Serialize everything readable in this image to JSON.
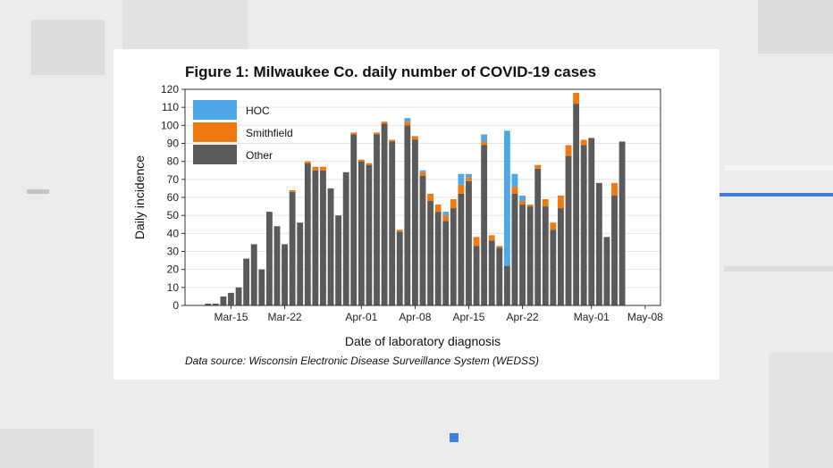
{
  "title": "Figure 1: Milwaukee Co. daily number of COVID-19 cases",
  "source": "Data source: Wisconsin Electronic Disease Surveillance System (WEDSS)",
  "colors": {
    "background": "#ececec",
    "accent": "#3d7fe0",
    "hoc": "#4ea7e6",
    "smithfield": "#f07a12",
    "other": "#5a5a5a"
  },
  "chart_data": {
    "type": "bar",
    "stacked": true,
    "title": "Figure 1: Milwaukee Co. daily number of COVID-19 cases",
    "xlabel": "Date of laboratory diagnosis",
    "ylabel": "Daily incidence",
    "ylim": [
      0,
      120
    ],
    "yticks": [
      0,
      10,
      20,
      30,
      40,
      50,
      60,
      70,
      80,
      90,
      100,
      110,
      120
    ],
    "xticks": [
      "Mar-15",
      "Mar-22",
      "Apr-01",
      "Apr-08",
      "Apr-15",
      "Apr-22",
      "May-01",
      "May-08"
    ],
    "xtick_dates": [
      "2020-03-15",
      "2020-03-22",
      "2020-04-01",
      "2020-04-08",
      "2020-04-15",
      "2020-04-22",
      "2020-05-01",
      "2020-05-08"
    ],
    "xlim": [
      "2020-03-09",
      "2020-05-10"
    ],
    "legend_position": "top-left",
    "grid": "horizontal",
    "x": [
      "2020-03-12",
      "2020-03-13",
      "2020-03-14",
      "2020-03-15",
      "2020-03-16",
      "2020-03-17",
      "2020-03-18",
      "2020-03-19",
      "2020-03-20",
      "2020-03-21",
      "2020-03-22",
      "2020-03-23",
      "2020-03-24",
      "2020-03-25",
      "2020-03-26",
      "2020-03-27",
      "2020-03-28",
      "2020-03-29",
      "2020-03-30",
      "2020-03-31",
      "2020-04-01",
      "2020-04-02",
      "2020-04-03",
      "2020-04-04",
      "2020-04-05",
      "2020-04-06",
      "2020-04-07",
      "2020-04-08",
      "2020-04-09",
      "2020-04-10",
      "2020-04-11",
      "2020-04-12",
      "2020-04-13",
      "2020-04-14",
      "2020-04-15",
      "2020-04-16",
      "2020-04-17",
      "2020-04-18",
      "2020-04-19",
      "2020-04-20",
      "2020-04-21",
      "2020-04-22",
      "2020-04-23",
      "2020-04-24",
      "2020-04-25",
      "2020-04-26",
      "2020-04-27",
      "2020-04-28",
      "2020-04-29",
      "2020-04-30",
      "2020-05-01",
      "2020-05-02",
      "2020-05-03",
      "2020-05-04",
      "2020-05-05"
    ],
    "series": [
      {
        "name": "Other",
        "values": [
          1,
          1,
          5,
          7,
          10,
          26,
          34,
          20,
          52,
          44,
          34,
          63,
          46,
          79,
          75,
          75,
          65,
          50,
          74,
          95,
          80,
          78,
          95,
          101,
          91,
          41,
          100,
          92,
          72,
          58,
          52,
          47,
          54,
          62,
          69,
          33,
          89,
          36,
          32,
          22,
          62,
          56,
          55,
          76,
          55,
          42,
          54,
          83,
          112,
          89,
          93,
          68,
          38,
          61,
          91
        ]
      },
      {
        "name": "Smithfield",
        "values": [
          0,
          0,
          0,
          0,
          0,
          0,
          0,
          0,
          0,
          0,
          0,
          1,
          0,
          1,
          2,
          2,
          0,
          0,
          0,
          1,
          1,
          1,
          1,
          1,
          1,
          1,
          2,
          2,
          2,
          4,
          4,
          3,
          5,
          5,
          2,
          5,
          2,
          3,
          1,
          0,
          4,
          2,
          1,
          2,
          4,
          4,
          7,
          6,
          6,
          3,
          0,
          0,
          0,
          7,
          0
        ]
      },
      {
        "name": "HOC",
        "values": [
          0,
          0,
          0,
          0,
          0,
          0,
          0,
          0,
          0,
          0,
          0,
          0,
          0,
          0,
          0,
          0,
          0,
          0,
          0,
          0,
          0,
          0,
          0,
          0,
          0,
          0,
          2,
          0,
          1,
          0,
          0,
          2,
          0,
          6,
          2,
          0,
          4,
          0,
          0,
          75,
          7,
          3,
          0,
          0,
          0,
          0,
          0,
          0,
          0,
          0,
          0,
          0,
          0,
          0,
          0
        ]
      }
    ]
  }
}
